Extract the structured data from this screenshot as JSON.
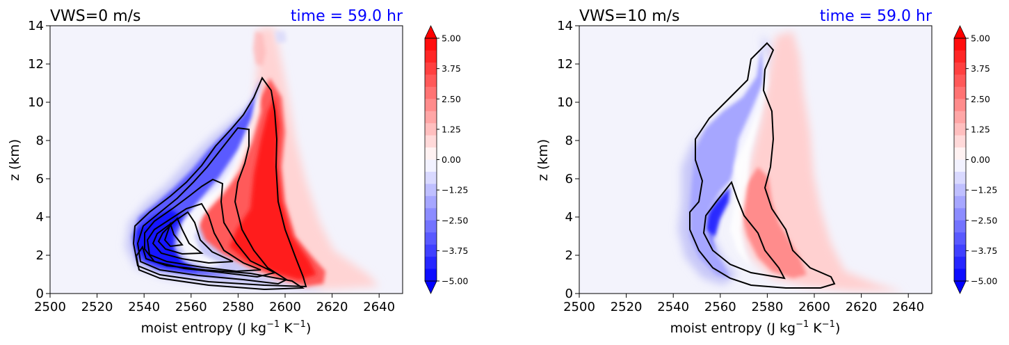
{
  "colors": {
    "positive": "#ff0000",
    "negative": "#0000ff",
    "background": "#f3f3fc",
    "contour": "#000000"
  },
  "colorbar": {
    "min": -5.0,
    "max": 5.0,
    "levels": 20,
    "ticks": [
      "5.00",
      "3.75",
      "2.50",
      "1.25",
      "0.00",
      "−1.25",
      "−2.50",
      "−3.75",
      "−5.00"
    ],
    "extend": "both"
  },
  "chart_data": [
    {
      "type": "contour",
      "title_left": "VWS=0 m/s",
      "title_right": "time = 59.0 hr",
      "xlabel_main": "moist entropy (J kg",
      "xlabel_sup1": "−1",
      "xlabel_mid": " K",
      "xlabel_sup2": "−1",
      "xlabel_end": ")",
      "ylabel": "z (km)",
      "xlim": [
        2500,
        2650
      ],
      "ylim": [
        0,
        14
      ],
      "xticks": [
        "2500",
        "2520",
        "2540",
        "2560",
        "2580",
        "2600",
        "2620",
        "2640"
      ],
      "yticks": [
        "0",
        "2",
        "4",
        "6",
        "8",
        "10",
        "12",
        "14"
      ],
      "contour_count": 8
    },
    {
      "type": "contour",
      "title_left": "VWS=10 m/s",
      "title_right": "time = 59.0 hr",
      "xlabel_main": "moist entropy (J kg",
      "xlabel_sup1": "−1",
      "xlabel_mid": " K",
      "xlabel_sup2": "−1",
      "xlabel_end": ")",
      "ylabel": "z (km)",
      "xlim": [
        2500,
        2650
      ],
      "ylim": [
        0,
        14
      ],
      "xticks": [
        "2500",
        "2520",
        "2540",
        "2560",
        "2580",
        "2600",
        "2620",
        "2640"
      ],
      "yticks": [
        "0",
        "2",
        "4",
        "6",
        "8",
        "10",
        "12",
        "14"
      ],
      "contour_count": 1
    }
  ]
}
